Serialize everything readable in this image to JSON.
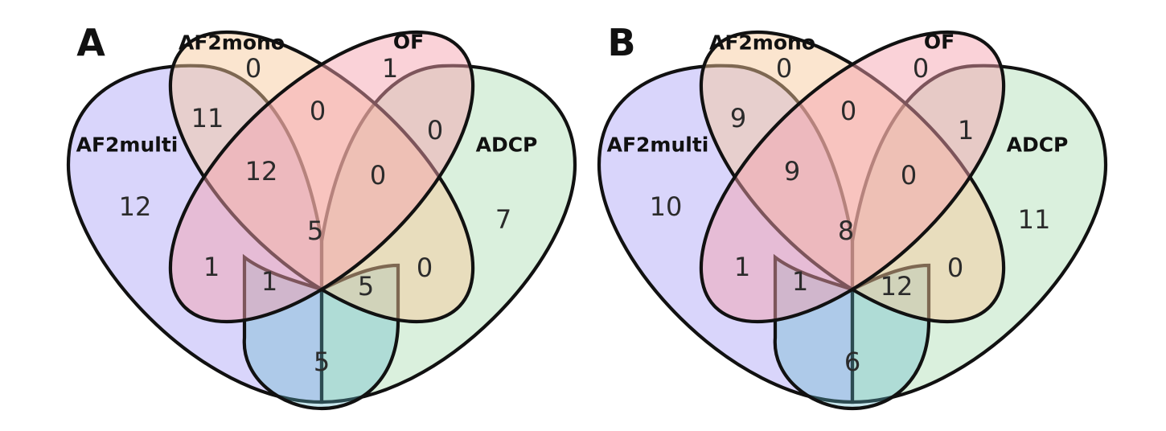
{
  "colors": {
    "AF2multi": "#a59bf5",
    "AF2mono": "#f7c89b",
    "OF": "#f5a0ad",
    "ADCP": "#a6dcae"
  },
  "panels": [
    {
      "letter": "A",
      "sets": {
        "AF2multi": "AF2multi",
        "AF2mono": "AF2mono",
        "OF": "OF",
        "ADCP": "ADCP"
      },
      "regions": {
        "multi_only": "12",
        "mono_only": "0",
        "of_only": "1",
        "adcp_only": "7",
        "multi_mono": "11",
        "mono_of": "0",
        "of_adcp": "0",
        "multi_mono_of": "12",
        "mono_of_adcp": "0",
        "all_four": "5",
        "multi_of": "1",
        "mono_adcp": "0",
        "multi_of_adcp": "1",
        "multi_mono_adcp": "5",
        "multi_adcp": "5"
      }
    },
    {
      "letter": "B",
      "sets": {
        "AF2multi": "AF2multi",
        "AF2mono": "AF2mono",
        "OF": "OF",
        "ADCP": "ADCP"
      },
      "regions": {
        "multi_only": "10",
        "mono_only": "0",
        "of_only": "0",
        "adcp_only": "11",
        "multi_mono": "9",
        "mono_of": "0",
        "of_adcp": "1",
        "multi_mono_of": "9",
        "mono_of_adcp": "0",
        "all_four": "8",
        "multi_of": "1",
        "mono_adcp": "0",
        "multi_of_adcp": "1",
        "multi_mono_adcp": "12",
        "multi_adcp": "6"
      }
    }
  ]
}
